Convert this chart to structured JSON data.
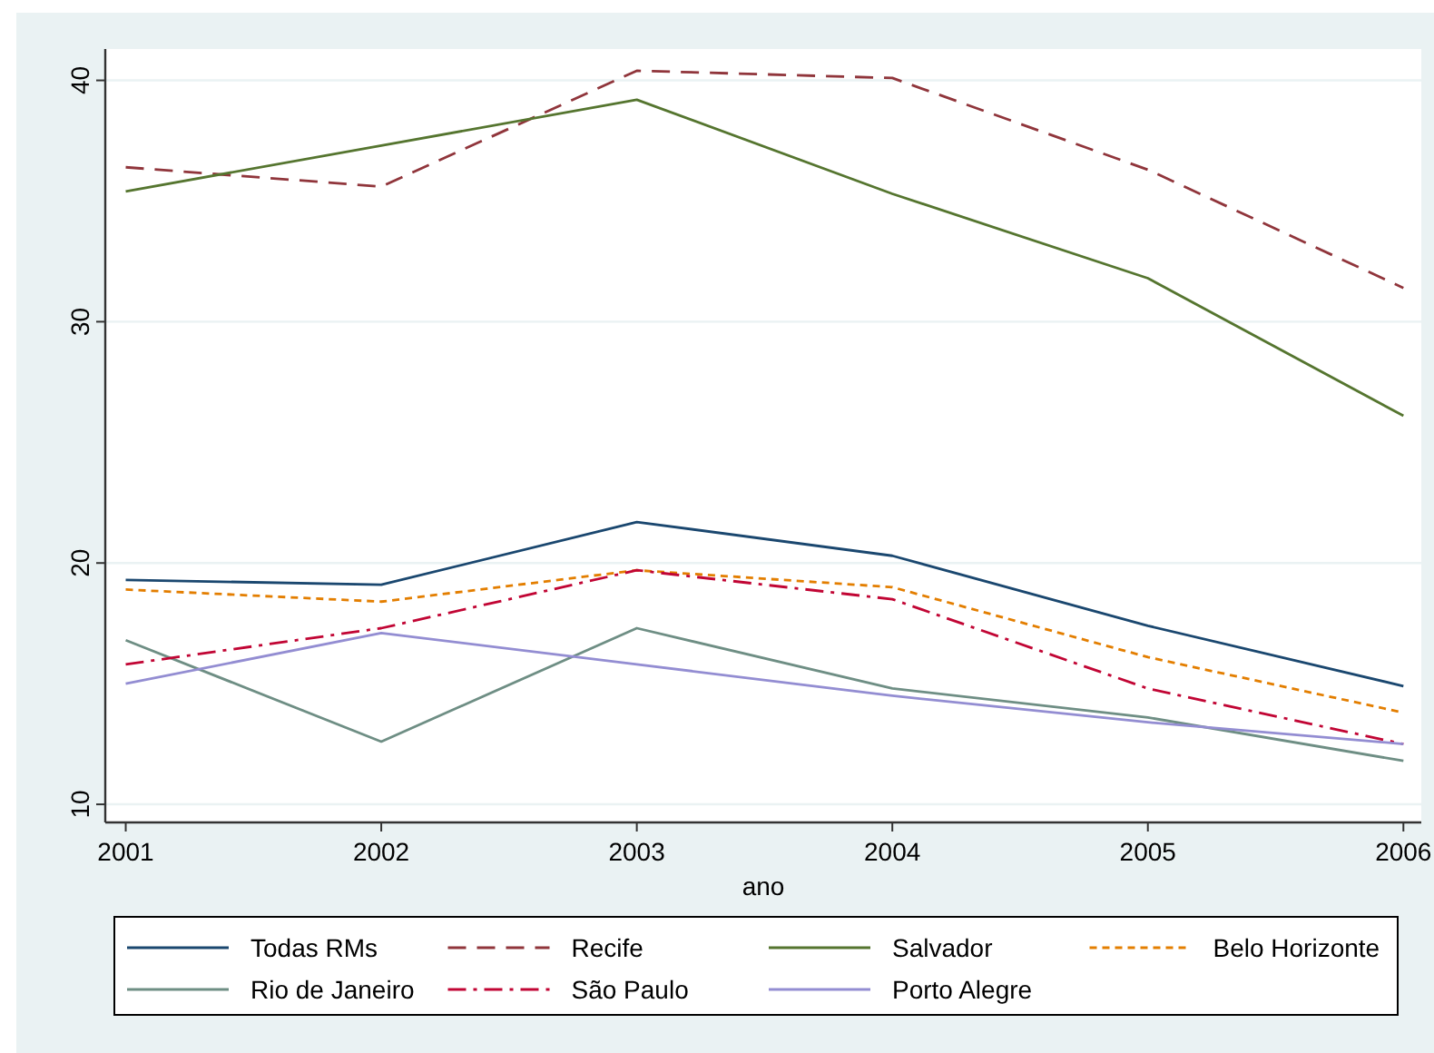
{
  "chart_data": {
    "type": "line",
    "xlabel": "ano",
    "x": [
      2001,
      2002,
      2003,
      2004,
      2005,
      2006
    ],
    "xlim": [
      2000.92,
      2006.07
    ],
    "xticks": [
      2001,
      2002,
      2003,
      2004,
      2005,
      2006
    ],
    "ylim": [
      9.25,
      41.3
    ],
    "yticks": [
      10,
      20,
      30,
      40
    ],
    "grid": "y",
    "legend": "bottom",
    "marker": "none",
    "series": [
      {
        "name": "Todas RMs",
        "color": "#1a476f",
        "line_style": "solid",
        "values": [
          19.3,
          19.1,
          21.7,
          20.3,
          17.4,
          14.9
        ]
      },
      {
        "name": "Recife",
        "color": "#90353b",
        "line_style": "dashed",
        "values": [
          36.4,
          35.6,
          40.4,
          40.1,
          36.3,
          31.4
        ]
      },
      {
        "name": "Salvador",
        "color": "#55752f",
        "line_style": "solid",
        "values": [
          35.4,
          37.3,
          39.2,
          35.3,
          31.8,
          26.1
        ]
      },
      {
        "name": "Belo Horizonte",
        "color": "#e37e00",
        "line_style": "dotted",
        "values": [
          18.9,
          18.4,
          19.7,
          19.0,
          16.1,
          13.8
        ]
      },
      {
        "name": "Rio de Janeiro",
        "color": "#6e8e84",
        "line_style": "solid",
        "values": [
          16.8,
          12.6,
          17.3,
          14.8,
          13.6,
          11.8
        ]
      },
      {
        "name": "São Paulo",
        "color": "#c10534",
        "line_style": "dashdot",
        "values": [
          15.8,
          17.3,
          19.7,
          18.5,
          14.8,
          12.5
        ]
      },
      {
        "name": "Porto Alegre",
        "color": "#938dd2",
        "line_style": "solid",
        "values": [
          15.0,
          17.1,
          15.8,
          14.5,
          13.4,
          12.5
        ]
      }
    ]
  }
}
